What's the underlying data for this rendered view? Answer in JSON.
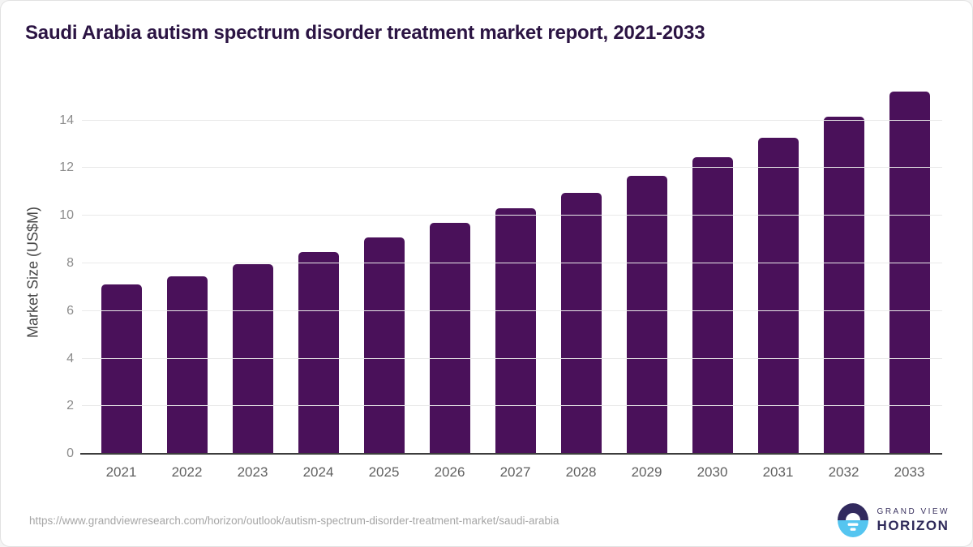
{
  "title": "Saudi Arabia autism spectrum disorder treatment market report, 2021-2033",
  "footer": {
    "source_url": "https://www.grandviewresearch.com/horizon/outlook/autism-spectrum-disorder-treatment-market/saudi-arabia",
    "logo": {
      "icon": "horizon-sun-circle-icon",
      "top_text": "GRAND VIEW",
      "bottom_text": "HORIZON"
    }
  },
  "colors": {
    "bar": "#4a115a",
    "title_text": "#2b1443",
    "gridline": "#e9e9e9",
    "axis_line": "#3d3d3d",
    "tick_text": "#8c8c8c",
    "x_label_text": "#606060",
    "y_label_text": "#474747",
    "url_text": "#a6a6a6",
    "logo_purple": "#322a5e",
    "logo_blue": "#55c5f0"
  },
  "chart_data": {
    "type": "bar",
    "title": "Saudi Arabia autism spectrum disorder treatment market report, 2021-2033",
    "categories": [
      "2021",
      "2022",
      "2023",
      "2024",
      "2025",
      "2026",
      "2027",
      "2028",
      "2029",
      "2030",
      "2031",
      "2032",
      "2033"
    ],
    "values": [
      7.1,
      7.45,
      7.97,
      8.49,
      9.08,
      9.69,
      10.31,
      10.97,
      11.68,
      12.45,
      13.28,
      14.16,
      15.2
    ],
    "xlabel": "",
    "ylabel": "Market Size (US$M)",
    "ylim": [
      0,
      15.25
    ],
    "yticks": [
      0,
      2,
      4,
      6,
      8,
      10,
      12,
      14
    ],
    "grid": "horizontal",
    "legend": "none",
    "bar_color": "#4a115a"
  }
}
